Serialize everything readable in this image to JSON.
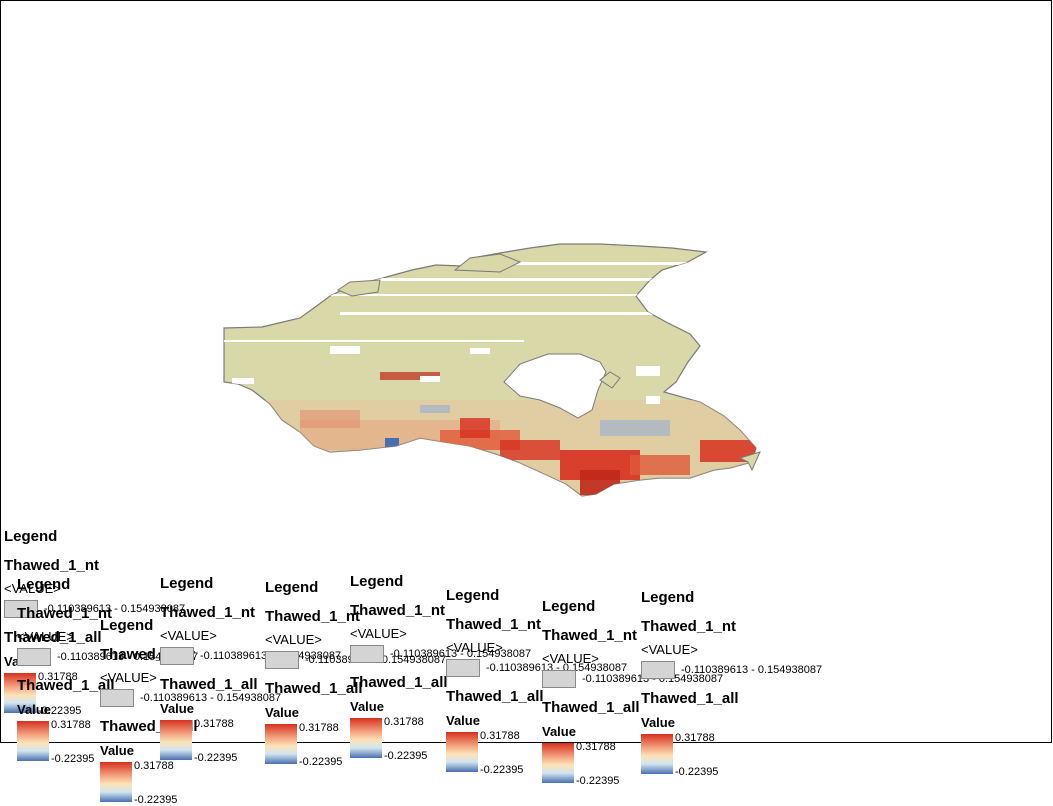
{
  "map": {
    "frame": "map-layout-frame",
    "land_color": "#d8d8a8",
    "warm_color": "#d7301f",
    "cool_color": "#4a6fb0",
    "outline_color": "#7a7a7a"
  },
  "legends": [
    {
      "title": "Legend",
      "layer1": "Thawed_1_nt",
      "value_header": "<VALUE>",
      "range": "-0.110389613 - 0.154938087",
      "layer2": "Thawed_1_all",
      "value_label": "Value",
      "max": "0.31788",
      "min": "-0.22395"
    },
    {
      "title": "Legend",
      "layer1": "Thawed_1_nt",
      "value_header": "<VALUE>",
      "range": "-0.110389613 - 0.154938087",
      "layer2": "Thawed_1_all",
      "value_label": "Value",
      "max": "0.31788",
      "min": "-0.22395"
    },
    {
      "title": "Legend",
      "layer1": "Thawed_1_nt",
      "value_header": "<VALUE>",
      "range": "-0.110389613 - 0.154938087",
      "layer2": "Thawed_1_all",
      "value_label": "Value",
      "max": "0.31788",
      "min": "-0.22395"
    },
    {
      "title": "Legend",
      "layer1": "Thawed_1_nt",
      "value_header": "<VALUE>",
      "range": "-0.110389613 - 0.154938087",
      "layer2": "Thawed_1_all",
      "value_label": "Value",
      "max": "0.31788",
      "min": "-0.22395"
    },
    {
      "title": "Legend",
      "layer1": "Thawed_1_nt",
      "value_header": "<VALUE>",
      "range": "-0.110389613 - 0.154938087",
      "layer2": "Thawed_1_all",
      "value_label": "Value",
      "max": "0.31788",
      "min": "-0.22395"
    },
    {
      "title": "Legend",
      "layer1": "Thawed_1_nt",
      "value_header": "<VALUE>",
      "range": "-0.110389613 - 0.154938087",
      "layer2": "Thawed_1_all",
      "value_label": "Value",
      "max": "0.31788",
      "min": "-0.22395"
    },
    {
      "title": "Legend",
      "layer1": "Thawed_1_nt",
      "value_header": "<VALUE>",
      "range": "-0.110389613 - 0.154938087",
      "layer2": "Thawed_1_all",
      "value_label": "Value",
      "max": "0.31788",
      "min": "-0.22395"
    },
    {
      "title": "Legend",
      "layer1": "Thawed_1_nt",
      "value_header": "<VALUE>",
      "range": "-0.110389613 - 0.154938087",
      "layer2": "Thawed_1_all",
      "value_label": "Value",
      "max": "0.31788",
      "min": "-0.22395"
    },
    {
      "title": "Legend",
      "layer1": "Thawed_1_nt",
      "value_header": "<VALUE>",
      "range": "-0.110389613 - 0.154938087",
      "layer2": "Thawed_1_all",
      "value_label": "Value",
      "max": "0.31788",
      "min": "-0.22395"
    }
  ]
}
